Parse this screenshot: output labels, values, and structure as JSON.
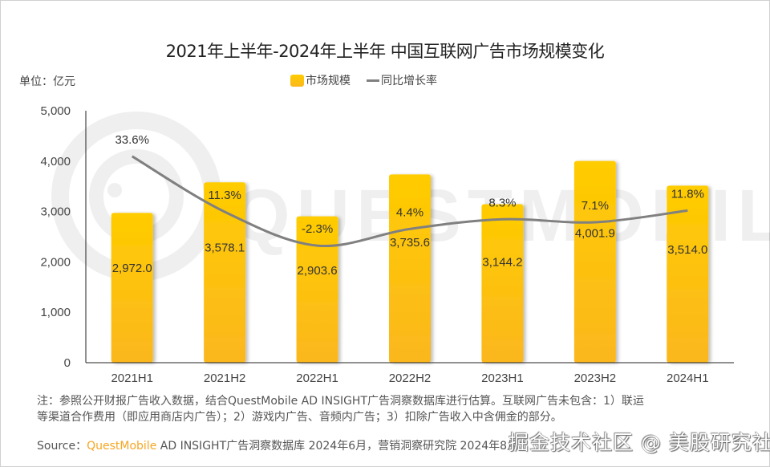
{
  "chart_data": {
    "type": "bar",
    "title": "2021年上半年-2024年上半年 中国互联网广告市场规模变化",
    "unit_label": "单位：亿元",
    "xlabel": "",
    "ylabel": "",
    "ylim": [
      0,
      5000
    ],
    "yticks": [
      "0",
      "1,000",
      "2,000",
      "3,000",
      "4,000",
      "5,000"
    ],
    "ytick_values": [
      0,
      1000,
      2000,
      3000,
      4000,
      5000
    ],
    "categories": [
      "2021H1",
      "2021H2",
      "2022H1",
      "2022H2",
      "2023H1",
      "2023H2",
      "2024H1"
    ],
    "series": [
      {
        "name": "市场规模",
        "type": "bar",
        "color": "#ffc800",
        "values": [
          2972.0,
          3578.1,
          2903.6,
          3735.6,
          3144.2,
          4001.9,
          3514.0
        ],
        "labels": [
          "2,972.0",
          "3,578.1",
          "2,903.6",
          "3,735.6",
          "3,144.2",
          "4,001.9",
          "3,514.0"
        ]
      },
      {
        "name": "同比增长率",
        "type": "line",
        "color": "#808080",
        "axis": "secondary",
        "values": [
          33.6,
          11.3,
          -2.3,
          4.4,
          8.3,
          7.1,
          11.8
        ],
        "labels": [
          "33.6%",
          "11.3%",
          "-2.3%",
          "4.4%",
          "8.3%",
          "7.1%",
          "11.8%"
        ]
      }
    ],
    "legend": {
      "placement": "top-center",
      "entries": [
        "市场规模",
        "同比增长率"
      ]
    },
    "grid": false
  },
  "notes": {
    "line1": "注：参照公开财报广告收入数据，结合QuestMobile AD INSIGHT广告洞察数据库进行估算。互联网广告未包含：1）联运",
    "line2": "等渠道合作费用（即应用商店内广告）；2）游戏内广告、音频内广告；3）扣除广告收入中含佣金的部分。"
  },
  "source": {
    "prefix": "Source：",
    "brand": "QuestMobile",
    "rest": " AD INSIGHT广告洞察数据库 2024年6月，营销洞察研究院 2024年8月"
  },
  "watermark": "掘金技术社区 @ 美股研究社"
}
